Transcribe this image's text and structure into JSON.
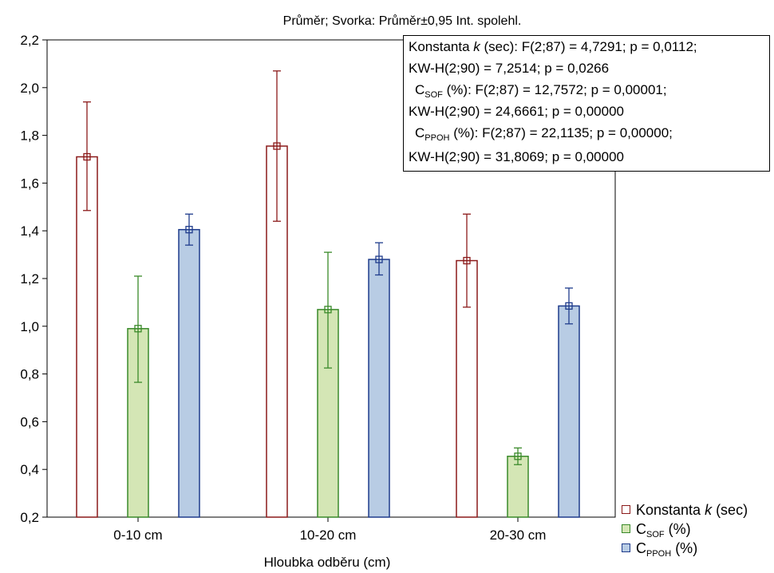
{
  "chart_data": {
    "type": "bar",
    "title": "Průměr; Svorka: Průměr±0,95 Int. spolehl.",
    "xlabel": "Hloubka odběru (cm)",
    "ylabel": "",
    "categories": [
      "0-10 cm",
      "10-20 cm",
      "20-30 cm"
    ],
    "ylim": [
      0.2,
      2.2
    ],
    "y_ticks": [
      "0,2",
      "0,4",
      "0,6",
      "0,8",
      "1,0",
      "1,2",
      "1,4",
      "1,6",
      "1,8",
      "2,0",
      "2,2"
    ],
    "y_tick_values": [
      0.2,
      0.4,
      0.6,
      0.8,
      1.0,
      1.2,
      1.4,
      1.6,
      1.8,
      2.0,
      2.2
    ],
    "grid": false,
    "legend_position": "bottom-right",
    "series": [
      {
        "name": "Konstanta k (sec)",
        "values": [
          1.71,
          1.755,
          1.275
        ],
        "ci_low": [
          1.485,
          1.44,
          1.08
        ],
        "ci_high": [
          1.94,
          2.07,
          1.47
        ],
        "fill": "#ffffff",
        "stroke": "#8b1a1a"
      },
      {
        "name": "CSOF (%)",
        "values": [
          0.99,
          1.07,
          0.455
        ],
        "ci_low": [
          0.765,
          0.825,
          0.42
        ],
        "ci_high": [
          1.21,
          1.31,
          0.49
        ],
        "fill": "#d4e6b5",
        "stroke": "#3a8a2a"
      },
      {
        "name": "CPPOH (%)",
        "values": [
          1.405,
          1.28,
          1.085
        ],
        "ci_low": [
          1.34,
          1.215,
          1.01
        ],
        "ci_high": [
          1.47,
          1.35,
          1.16
        ],
        "fill": "#b8cce4",
        "stroke": "#1f3c8c"
      }
    ]
  },
  "annotation": {
    "lines": [
      {
        "pre": "Konstanta ",
        "italic": "k",
        "post": " (sec):   F(2;87) = 4,7291; p = 0,0112;"
      },
      {
        "text": "KW-H(2;90) = 7,2514; p = 0,0266"
      },
      {
        "pre": "C",
        "sub": "SOF",
        "post": " (%):   F(2;87) = 12,7572; p = 0,00001;"
      },
      {
        "text": "KW-H(2;90) = 24,6661; p = 0,00000"
      },
      {
        "pre": "C",
        "sub": "PPOH",
        "post": " (%):   F(2;87) = 22,1135; p = 0,00000;"
      },
      {
        "text": "KW-H(2;90) = 31,8069; p = 0,00000"
      }
    ]
  },
  "legend": {
    "items": [
      {
        "pre": "Konstanta ",
        "italic": "k",
        "post": " (sec)"
      },
      {
        "pre": "C",
        "sub": "SOF",
        "post": " (%)"
      },
      {
        "pre": "C",
        "sub": "PPOH",
        "post": " (%)"
      }
    ]
  }
}
